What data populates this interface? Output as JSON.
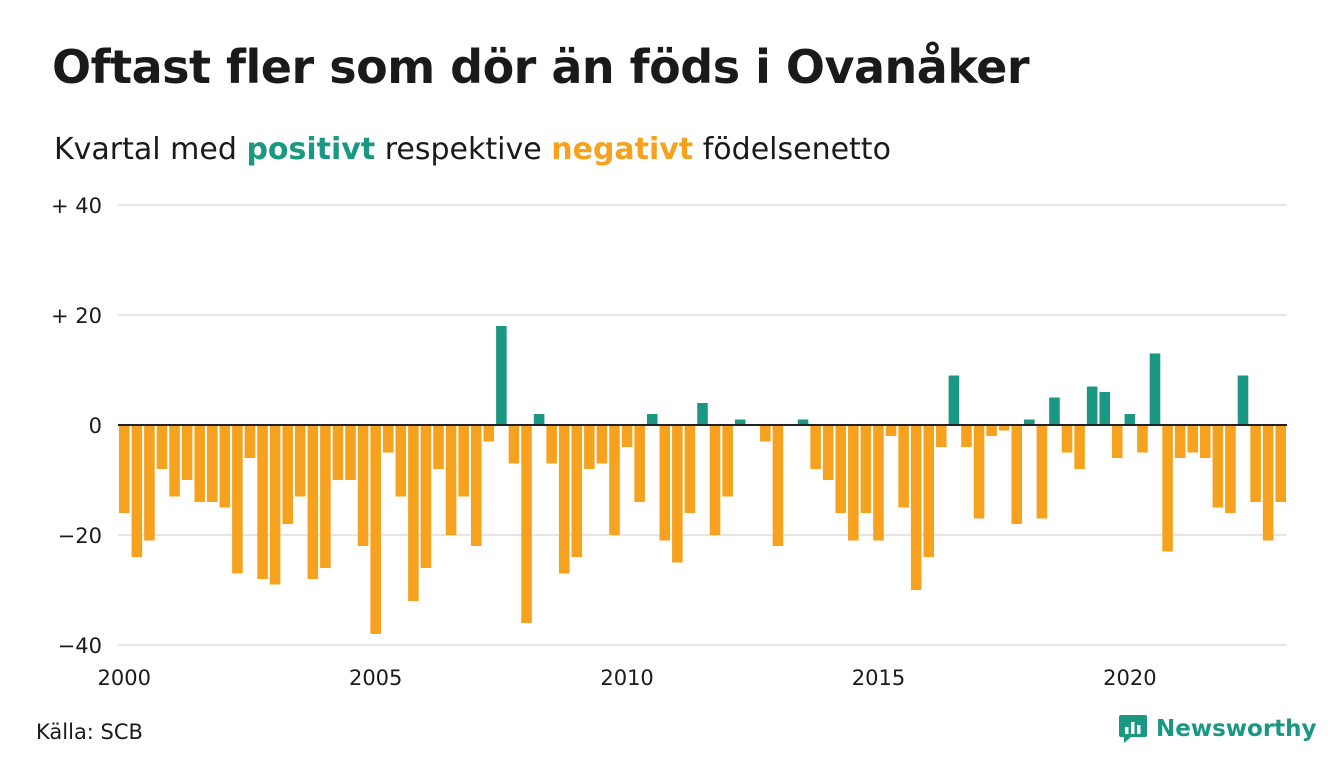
{
  "title": "Oftast fler som dör än föds i Ovanåker",
  "subtitle": {
    "prefix": "Kvartal med",
    "positive": "positivt",
    "middle": "respektive",
    "negative": "negativt",
    "suffix": "födelsenetto"
  },
  "source": "Källa: SCB",
  "brand": {
    "name": "Newsworthy",
    "icon": "newsworthy-chart-logo-icon"
  },
  "colors": {
    "positive": "#1a9882",
    "negative": "#f6a21e",
    "grid": "#dddddd",
    "zero": "#222222",
    "text": "#1a1a1a"
  },
  "chart_data": {
    "type": "bar",
    "title": "Oftast fler som dör än föds i Ovanåker",
    "subtitle": "Kvartal med positivt respektive negativt födelsenetto",
    "xlabel": "",
    "ylabel": "",
    "x_start": 2000,
    "periods_per_year": 4,
    "values": [
      -16,
      -24,
      -21,
      -8,
      -13,
      -10,
      -14,
      -14,
      -15,
      -27,
      -6,
      -28,
      -29,
      -18,
      -13,
      -28,
      -26,
      -10,
      -10,
      -22,
      -38,
      -5,
      -13,
      -32,
      -26,
      -8,
      -20,
      -13,
      -22,
      -3,
      18,
      -7,
      -36,
      2,
      -7,
      -27,
      -24,
      -8,
      -7,
      -20,
      -4,
      -14,
      2,
      -21,
      -25,
      -16,
      4,
      -20,
      -13,
      1,
      0,
      -3,
      -22,
      0,
      1,
      -8,
      -10,
      -16,
      -21,
      -16,
      -21,
      -2,
      -15,
      -30,
      -24,
      -4,
      9,
      -4,
      -17,
      -2,
      -1,
      -18,
      1,
      -17,
      5,
      -5,
      -8,
      7,
      6,
      -6,
      2,
      -5,
      13,
      -23,
      -6,
      -5,
      -6,
      -15,
      -16,
      9,
      -14,
      -21,
      -14
    ],
    "ylim": [
      -40,
      40
    ],
    "yticks": [
      40,
      20,
      0,
      -20,
      -40
    ],
    "ytick_labels": [
      "+ 40",
      "+ 20",
      "0",
      "−20",
      "−40"
    ],
    "xticks": [
      2000,
      2005,
      2010,
      2015,
      2020
    ],
    "xtick_labels": [
      "2000",
      "2005",
      "2010",
      "2015",
      "2020"
    ],
    "grid": true,
    "legend": "none"
  }
}
